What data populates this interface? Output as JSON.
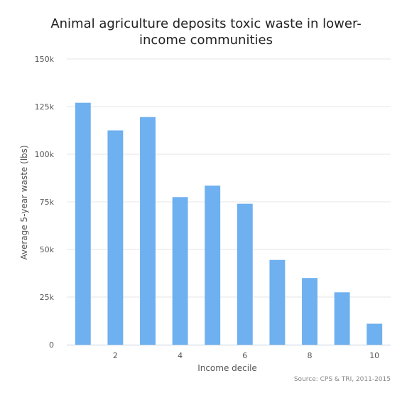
{
  "chart_data": {
    "type": "bar",
    "title_lines": [
      "Animal agriculture deposits toxic waste in lower-",
      "income communities"
    ],
    "xlabel": "Income decile",
    "ylabel": "Average 5-year waste (lbs)",
    "source": "Source: CPS & TRI, 2011-2015",
    "categories": [
      1,
      2,
      3,
      4,
      5,
      6,
      7,
      8,
      9,
      10
    ],
    "x_tick_labels": [
      "2",
      "4",
      "6",
      "8",
      "10"
    ],
    "y_tick_labels": [
      "0",
      "25k",
      "50k",
      "75k",
      "100k",
      "125k",
      "150k"
    ],
    "values": [
      127000,
      112500,
      119500,
      77500,
      83500,
      74000,
      44500,
      35000,
      27500,
      11000
    ],
    "ylim": [
      0,
      150000
    ],
    "grid": true,
    "bar_color": "#6eb0f0",
    "grid_color": "#e6e6e6"
  }
}
